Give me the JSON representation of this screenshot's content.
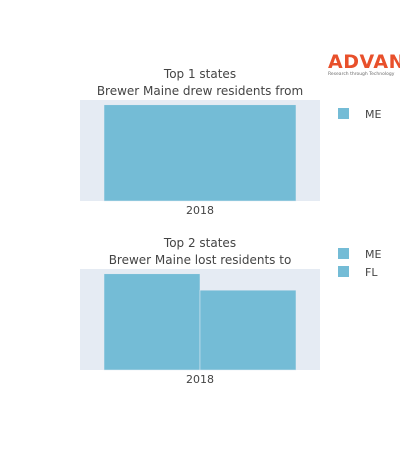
{
  "logo": {
    "name": "ADVAN",
    "tagline": "Research through Technology",
    "color": "#e8502b"
  },
  "chart_data": [
    {
      "type": "bar",
      "title": "Top 1 states",
      "subtitle": "Brewer Maine drew residents from",
      "categories": [
        "2018"
      ],
      "series": [
        {
          "name": "ME",
          "values": [
            1
          ]
        }
      ],
      "ylim": [
        0,
        1.05
      ],
      "grid": false,
      "legend": "right",
      "colors": [
        "#74bcd6"
      ],
      "plot_bg": "#e5ebf3"
    },
    {
      "type": "bar",
      "title": "Top 2 states",
      "subtitle": "Brewer Maine lost residents to",
      "categories": [
        "2018"
      ],
      "series": [
        {
          "name": "ME",
          "values": [
            1
          ]
        },
        {
          "name": "FL",
          "values": [
            0.83
          ]
        }
      ],
      "ylim": [
        0,
        1.05
      ],
      "grid": false,
      "legend": "right",
      "colors": [
        "#74bcd6",
        "#74bcd6"
      ],
      "plot_bg": "#e5ebf3"
    }
  ]
}
